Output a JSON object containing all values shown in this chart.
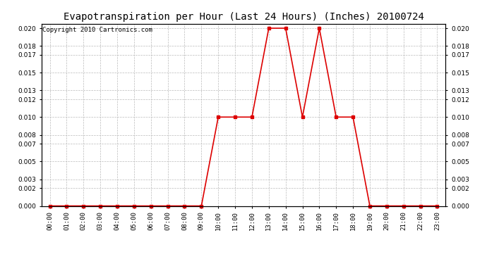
{
  "title": "Evapotranspiration per Hour (Last 24 Hours) (Inches) 20100724",
  "copyright": "Copyright 2010 Cartronics.com",
  "hours": [
    "00:00",
    "01:00",
    "02:00",
    "03:00",
    "04:00",
    "05:00",
    "06:00",
    "07:00",
    "08:00",
    "09:00",
    "10:00",
    "11:00",
    "12:00",
    "13:00",
    "14:00",
    "15:00",
    "16:00",
    "17:00",
    "18:00",
    "19:00",
    "20:00",
    "21:00",
    "22:00",
    "23:00"
  ],
  "values": [
    0.0,
    0.0,
    0.0,
    0.0,
    0.0,
    0.0,
    0.0,
    0.0,
    0.0,
    0.0,
    0.01,
    0.01,
    0.01,
    0.02,
    0.02,
    0.01,
    0.02,
    0.01,
    0.01,
    0.0,
    0.0,
    0.0,
    0.0,
    0.0
  ],
  "line_color": "#dd0000",
  "marker": "s",
  "marker_size": 2.5,
  "line_width": 1.2,
  "ylim": [
    0.0,
    0.0205
  ],
  "yticks": [
    0.0,
    0.002,
    0.003,
    0.005,
    0.007,
    0.008,
    0.01,
    0.012,
    0.013,
    0.015,
    0.017,
    0.018,
    0.02
  ],
  "background_color": "#ffffff",
  "grid_color": "#bbbbbb",
  "title_fontsize": 10,
  "copyright_fontsize": 6.5
}
